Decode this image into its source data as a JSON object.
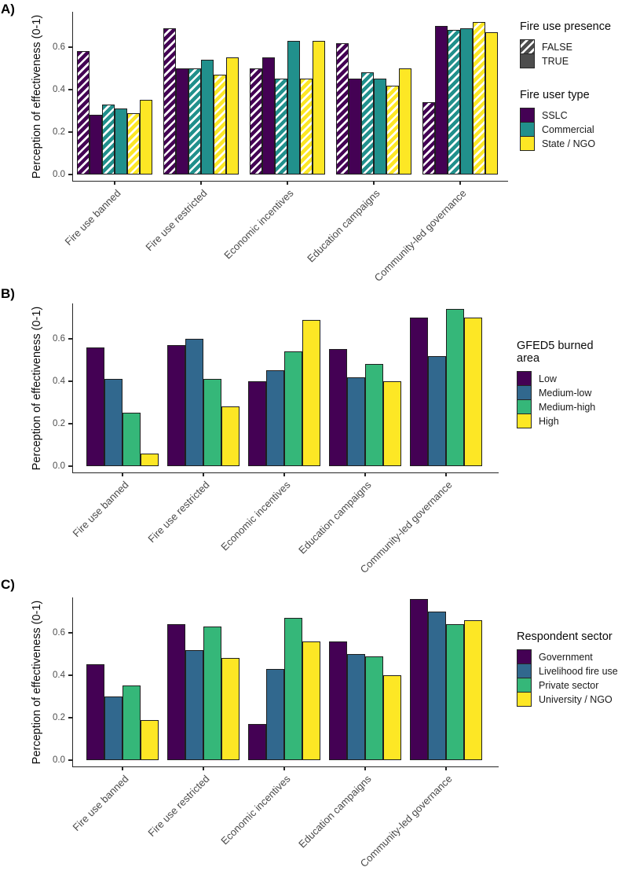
{
  "figure": {
    "panel_labels": [
      "A)",
      "B)",
      "C)"
    ],
    "colors": {
      "purple": "#440154",
      "teal": "#21908C",
      "blue": "#31688E",
      "green": "#35B779",
      "yellow": "#FDE725",
      "legend_gray": "#4D4D4D",
      "axis": "#262626"
    }
  },
  "y_axis": {
    "title": "Perception of effectiveness (0-1)",
    "tick_labels": [
      "0.0",
      "0.2",
      "0.4",
      "0.6"
    ],
    "tick_values": [
      0,
      0.2,
      0.4,
      0.6
    ]
  },
  "panels": [
    {
      "label": "A)",
      "y_axis_title": "Perception of effectiveness (0-1)",
      "legends": [
        {
          "title": "Fire use presence",
          "items": [
            {
              "label": "FALSE",
              "color": "#4D4D4D",
              "hatched": true
            },
            {
              "label": "TRUE",
              "color": "#4D4D4D",
              "hatched": false
            }
          ]
        },
        {
          "title": "Fire user type",
          "items": [
            {
              "label": "SSLC",
              "color": "#440154",
              "hatched": false
            },
            {
              "label": "Commercial",
              "color": "#21908C",
              "hatched": false
            },
            {
              "label": "State / NGO",
              "color": "#FDE725",
              "hatched": false
            }
          ]
        }
      ]
    },
    {
      "label": "B)",
      "y_axis_title": "Perception of effectiveness (0-1)",
      "legends": [
        {
          "title": "GFED5 burned area",
          "items": [
            {
              "label": "Low",
              "color": "#440154",
              "hatched": false
            },
            {
              "label": "Medium-low",
              "color": "#31688E",
              "hatched": false
            },
            {
              "label": "Medium-high",
              "color": "#35B779",
              "hatched": false
            },
            {
              "label": "High",
              "color": "#FDE725",
              "hatched": false
            }
          ]
        }
      ]
    },
    {
      "label": "C)",
      "y_axis_title": "Perception of effectiveness (0-1)",
      "legends": [
        {
          "title": "Respondent sector",
          "items": [
            {
              "label": "Government",
              "color": "#440154",
              "hatched": false
            },
            {
              "label": "Livelihood fire user",
              "color": "#31688E",
              "hatched": false
            },
            {
              "label": "Private sector",
              "color": "#35B779",
              "hatched": false
            },
            {
              "label": "University / NGO",
              "color": "#FDE725",
              "hatched": false
            }
          ]
        }
      ]
    }
  ],
  "chart_data": [
    {
      "type": "bar",
      "panel": "A)",
      "ylabel": "Perception of effectiveness (0-1)",
      "ylim": [
        0,
        0.78
      ],
      "yticks": [
        0,
        0.2,
        0.4,
        0.6
      ],
      "grid": false,
      "legend_position": "right",
      "categories": [
        "Fire use banned",
        "Fire use restricted",
        "Economic incentives",
        "Education campaigns",
        "Community-led governance"
      ],
      "series": [
        {
          "name": "SSLC - FALSE",
          "fire_user_type": "SSLC",
          "fire_use_presence": "FALSE",
          "color": "#440154",
          "hatched": true,
          "values": [
            0.58,
            0.69,
            0.5,
            0.62,
            0.34
          ]
        },
        {
          "name": "SSLC - TRUE",
          "fire_user_type": "SSLC",
          "fire_use_presence": "TRUE",
          "color": "#440154",
          "hatched": false,
          "values": [
            0.28,
            0.5,
            0.55,
            0.45,
            0.7
          ]
        },
        {
          "name": "Commercial - FALSE",
          "fire_user_type": "Commercial",
          "fire_use_presence": "FALSE",
          "color": "#21908C",
          "hatched": true,
          "values": [
            0.33,
            0.5,
            0.45,
            0.48,
            0.68
          ]
        },
        {
          "name": "Commercial - TRUE",
          "fire_user_type": "Commercial",
          "fire_use_presence": "TRUE",
          "color": "#21908C",
          "hatched": false,
          "values": [
            0.31,
            0.54,
            0.63,
            0.45,
            0.69
          ]
        },
        {
          "name": "State / NGO - FALSE",
          "fire_user_type": "State / NGO",
          "fire_use_presence": "FALSE",
          "color": "#FDE725",
          "hatched": true,
          "values": [
            0.29,
            0.47,
            0.45,
            0.42,
            0.72
          ]
        },
        {
          "name": "State / NGO - TRUE",
          "fire_user_type": "State / NGO",
          "fire_use_presence": "TRUE",
          "color": "#FDE725",
          "hatched": false,
          "values": [
            0.35,
            0.55,
            0.63,
            0.5,
            0.67
          ]
        }
      ]
    },
    {
      "type": "bar",
      "panel": "B)",
      "ylabel": "Perception of effectiveness (0-1)",
      "ylim": [
        0,
        0.78
      ],
      "yticks": [
        0,
        0.2,
        0.4,
        0.6
      ],
      "grid": false,
      "legend_position": "right",
      "categories": [
        "Fire use banned",
        "Fire use restricted",
        "Economic incentives",
        "Education campaigns",
        "Community-led governance"
      ],
      "series": [
        {
          "name": "Low",
          "color": "#440154",
          "hatched": false,
          "values": [
            0.56,
            0.57,
            0.4,
            0.55,
            0.7
          ]
        },
        {
          "name": "Medium-low",
          "color": "#31688E",
          "hatched": false,
          "values": [
            0.41,
            0.6,
            0.45,
            0.42,
            0.52
          ]
        },
        {
          "name": "Medium-high",
          "color": "#35B779",
          "hatched": false,
          "values": [
            0.25,
            0.41,
            0.54,
            0.48,
            0.74
          ]
        },
        {
          "name": "High",
          "color": "#FDE725",
          "hatched": false,
          "values": [
            0.06,
            0.28,
            0.69,
            0.4,
            0.7
          ]
        }
      ]
    },
    {
      "type": "bar",
      "panel": "C)",
      "ylabel": "Perception of effectiveness (0-1)",
      "ylim": [
        0,
        0.78
      ],
      "yticks": [
        0,
        0.2,
        0.4,
        0.6
      ],
      "grid": false,
      "legend_position": "right",
      "categories": [
        "Fire use banned",
        "Fire use restricted",
        "Economic incentives",
        "Education campaigns",
        "Community-led governance"
      ],
      "series": [
        {
          "name": "Government",
          "color": "#440154",
          "hatched": false,
          "values": [
            0.45,
            0.64,
            0.17,
            0.56,
            0.76
          ]
        },
        {
          "name": "Livelihood fire user",
          "color": "#31688E",
          "hatched": false,
          "values": [
            0.3,
            0.52,
            0.43,
            0.5,
            0.7
          ]
        },
        {
          "name": "Private sector",
          "color": "#35B779",
          "hatched": false,
          "values": [
            0.35,
            0.63,
            0.67,
            0.49,
            0.64
          ]
        },
        {
          "name": "University / NGO",
          "color": "#FDE725",
          "hatched": false,
          "values": [
            0.19,
            0.48,
            0.56,
            0.4,
            0.66
          ]
        }
      ]
    }
  ]
}
